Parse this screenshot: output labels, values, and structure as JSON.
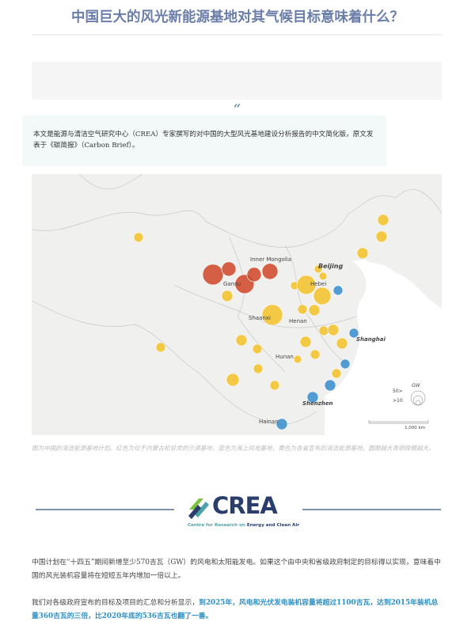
{
  "article": {
    "title": "中国巨大的风光新能源基地对其气候目标意味着什么？",
    "quote_mark": "“",
    "intro": "本文是能源与清洁空气研究中心（CREA）专家撰写的对中国的大型风光基地建设分析报告的中文简化版，原文发表于《碳简报》（Carbon Brief）。",
    "map": {
      "labels": {
        "inner_mongolia": "Inner Mongolia",
        "gansu": "Gansu",
        "beijing": "Beijing",
        "hebei": "Hebei",
        "shaanxi": "Shaanxi",
        "henan": "Henan",
        "shanghai": "Shanghai",
        "hunan": "Hunan",
        "shenzhen": "Shenzhen",
        "hainan": "Hainan"
      },
      "legend": {
        "unit": "GW",
        "large": "50>",
        "small": ">10"
      },
      "scale": "1,000 km",
      "colors": {
        "desert_base": "#cf4a2c",
        "offshore_wind": "#3b8fd0",
        "provincial": "#f2c12e"
      }
    },
    "caption": "图为中国的清洁能源基地计划。红色为位于内蒙古和甘肃的沙漠基地，蓝色为海上风电基地，黄色为各省宣布的清洁能源基地。圆圈越大表明规模越大。",
    "logo": {
      "name": "CREA",
      "tagline_a": "Centre for Research on ",
      "tagline_b": "Energy and Clean Air"
    },
    "paragraph1": "中国计划在“十四五”期间新增至少570吉瓦（GW）的风电和太阳能发电。如果这个由中央和省级政府制定的目标得以实现，意味着中国的风光装机容量将在短短五年内增加一倍以上。",
    "paragraph2_plain": "我们对各级政府宣布的目标及项目的汇总和分析显示，",
    "paragraph2_highlight": "到2025年，风电和光伏发电装机容量将超过1100吉瓦，达到2015年装机总量360吉瓦的三倍，比2020年底的536吉瓦也翻了一番。"
  }
}
